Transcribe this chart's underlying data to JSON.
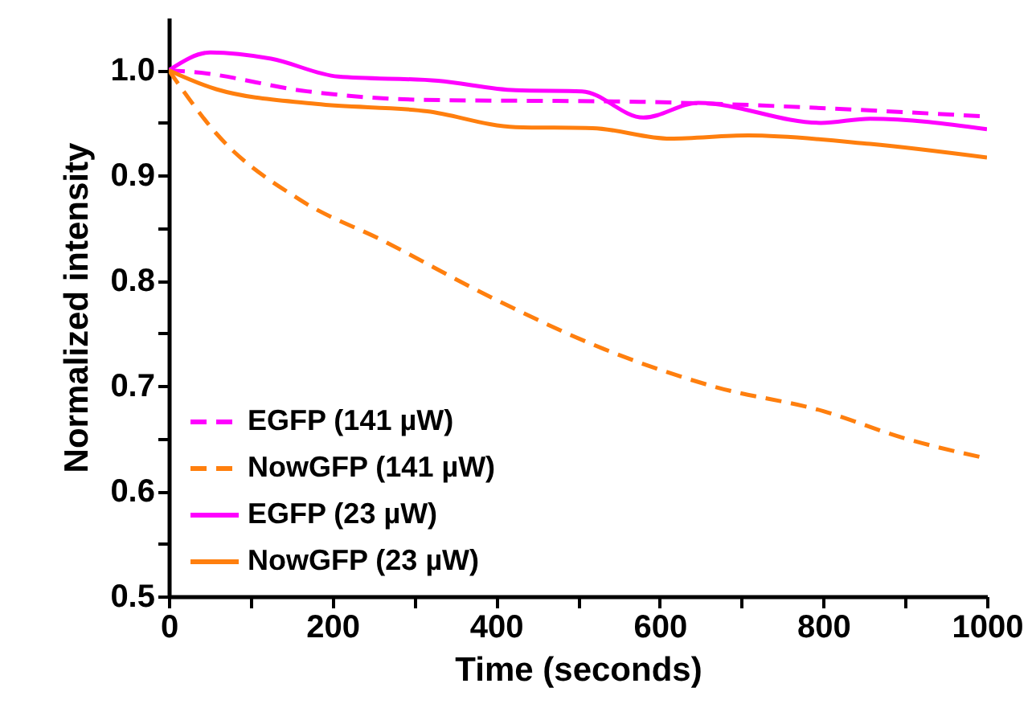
{
  "chart_data": {
    "type": "line",
    "xlabel": "Time (seconds)",
    "ylabel": "Normalized intensity",
    "xlim": [
      0,
      1000
    ],
    "ylim": [
      0.5,
      1.05
    ],
    "xticks": [
      0,
      {
        "value": 100,
        "label": null
      },
      200,
      {
        "value": 300,
        "label": null
      },
      400,
      {
        "value": 500,
        "label": null
      },
      600,
      {
        "value": 700,
        "label": null
      },
      800,
      {
        "value": 900,
        "label": null
      },
      1000
    ],
    "yticks": [
      {
        "value": 0.5,
        "label": "0.5"
      },
      {
        "value": 0.55,
        "label": null
      },
      {
        "value": 0.6,
        "label": "0.6"
      },
      {
        "value": 0.65,
        "label": null
      },
      {
        "value": 0.7,
        "label": "0.7"
      },
      {
        "value": 0.75,
        "label": null
      },
      {
        "value": 0.8,
        "label": "0.8"
      },
      {
        "value": 0.85,
        "label": null
      },
      {
        "value": 0.9,
        "label": "0.9"
      },
      {
        "value": 0.95,
        "label": null
      },
      {
        "value": 1.0,
        "label": "1.0"
      }
    ],
    "grid": false,
    "legend": "bottom left",
    "marker": "none",
    "series": [
      {
        "name": "EGFP (141 µW)",
        "color": "#ff00ff",
        "line_style": "dashed",
        "x": [
          0,
          34,
          169,
          305,
          576,
          1000
        ],
        "values": [
          1.0,
          0.998,
          0.98,
          0.972,
          0.97,
          0.956
        ]
      },
      {
        "name": "NowGFP (141 µW)",
        "color": "#ff7f0e",
        "line_style": "dashed",
        "x": [
          0,
          58,
          160,
          262,
          397,
          532,
          668,
          800,
          900,
          1000
        ],
        "values": [
          1.0,
          0.94,
          0.877,
          0.838,
          0.783,
          0.735,
          0.699,
          0.676,
          0.65,
          0.631
        ]
      },
      {
        "name": "EGFP (23 µW)",
        "color": "#ff00ff",
        "line_style": "solid",
        "x": [
          0,
          51,
          125,
          207,
          329,
          424,
          505,
          580,
          647,
          797,
          857,
          1000
        ],
        "values": [
          1.0,
          1.017,
          1.011,
          0.994,
          0.99,
          0.981,
          0.98,
          0.955,
          0.969,
          0.95,
          0.954,
          0.944
        ]
      },
      {
        "name": "NowGFP (23 µW)",
        "color": "#ff7f0e",
        "line_style": "solid",
        "x": [
          0,
          58,
          180,
          316,
          424,
          518,
          613,
          708,
          857,
          1000
        ],
        "values": [
          1.0,
          0.982,
          0.968,
          0.961,
          0.946,
          0.945,
          0.935,
          0.938,
          0.93,
          0.917
        ]
      }
    ]
  }
}
